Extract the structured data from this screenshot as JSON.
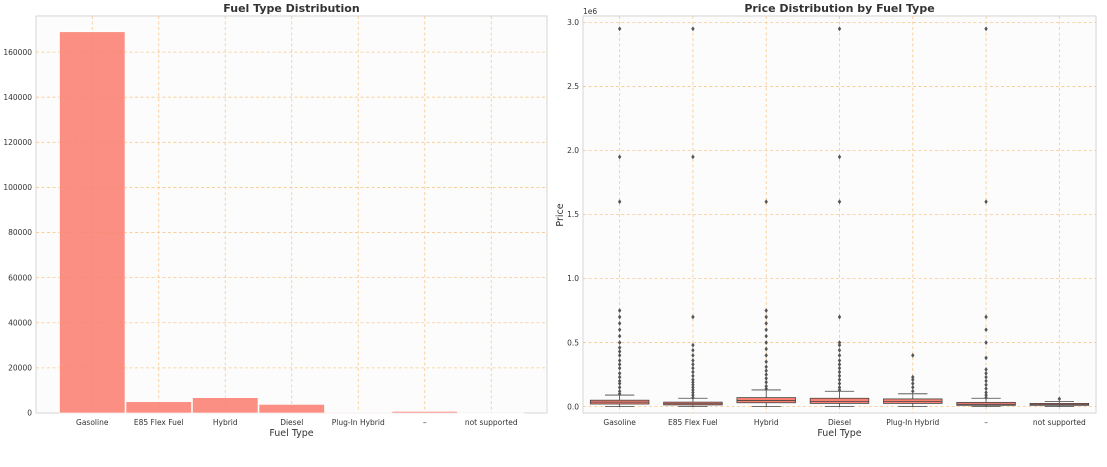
{
  "chart_data": [
    {
      "type": "bar",
      "title": "Fuel Type Distribution",
      "xlabel": "Fuel Type",
      "ylabel": "",
      "categories": [
        "Gasoline",
        "E85 Flex Fuel",
        "Hybrid",
        "Diesel",
        "Plug-In Hybrid",
        "–",
        "not supported"
      ],
      "values": [
        169000,
        5000,
        6800,
        3800,
        300,
        700,
        15
      ],
      "ylim": [
        0,
        176000
      ],
      "yticks": [
        0,
        20000,
        40000,
        60000,
        80000,
        100000,
        120000,
        140000,
        160000
      ],
      "ytick_labels": [
        "0",
        "20000",
        "40000",
        "60000",
        "80000",
        "100000",
        "120000",
        "140000",
        "160000"
      ],
      "grid": true,
      "color": "#fa8072"
    },
    {
      "type": "box",
      "title": "Price Distribution by Fuel Type",
      "xlabel": "Fuel Type",
      "ylabel": "Price",
      "scale_label": "1e6",
      "categories": [
        "Gasoline",
        "E85 Flex Fuel",
        "Hybrid",
        "Diesel",
        "Plug-In Hybrid",
        "–",
        "not supported"
      ],
      "ylim": [
        -0.05,
        3.05
      ],
      "yticks": [
        0.0,
        0.5,
        1.0,
        1.5,
        2.0,
        2.5,
        3.0
      ],
      "ytick_labels": [
        "0.0",
        "0.5",
        "1.0",
        "1.5",
        "2.0",
        "2.5",
        "3.0"
      ],
      "grid": true,
      "color": "#fa8072",
      "boxes": [
        {
          "q1": 0.02,
          "median": 0.035,
          "q3": 0.05,
          "whisker_low": 0.0,
          "whisker_high": 0.09,
          "outliers": [
            0.1,
            0.12,
            0.15,
            0.18,
            0.2,
            0.23,
            0.26,
            0.3,
            0.33,
            0.36,
            0.4,
            0.43,
            0.46,
            0.5,
            0.55,
            0.6,
            0.65,
            0.7,
            0.75,
            1.6,
            1.95,
            2.95
          ]
        },
        {
          "q1": 0.013,
          "median": 0.022,
          "q3": 0.035,
          "whisker_low": 0.0,
          "whisker_high": 0.065,
          "outliers": [
            0.07,
            0.09,
            0.11,
            0.13,
            0.15,
            0.17,
            0.19,
            0.21,
            0.24,
            0.27,
            0.3,
            0.33,
            0.36,
            0.4,
            0.44,
            0.48,
            0.7,
            1.95,
            2.95
          ]
        },
        {
          "q1": 0.03,
          "median": 0.048,
          "q3": 0.07,
          "whisker_low": 0.0,
          "whisker_high": 0.13,
          "outliers": [
            0.14,
            0.16,
            0.19,
            0.22,
            0.25,
            0.28,
            0.31,
            0.35,
            0.4,
            0.45,
            0.5,
            0.55,
            0.6,
            0.65,
            0.7,
            0.75,
            1.6
          ]
        },
        {
          "q1": 0.025,
          "median": 0.04,
          "q3": 0.065,
          "whisker_low": 0.0,
          "whisker_high": 0.12,
          "outliers": [
            0.13,
            0.15,
            0.18,
            0.21,
            0.24,
            0.27,
            0.3,
            0.33,
            0.36,
            0.4,
            0.44,
            0.48,
            0.5,
            0.7,
            1.6,
            1.95,
            2.95
          ]
        },
        {
          "q1": 0.025,
          "median": 0.04,
          "q3": 0.06,
          "whisker_low": 0.0,
          "whisker_high": 0.1,
          "outliers": [
            0.12,
            0.15,
            0.18,
            0.21,
            0.23,
            0.4
          ]
        },
        {
          "q1": 0.01,
          "median": 0.018,
          "q3": 0.033,
          "whisker_low": 0.0,
          "whisker_high": 0.065,
          "outliers": [
            0.07,
            0.09,
            0.11,
            0.14,
            0.17,
            0.2,
            0.23,
            0.26,
            0.29,
            0.38,
            0.5,
            0.6,
            0.7,
            1.6,
            2.95
          ]
        },
        {
          "q1": 0.01,
          "median": 0.015,
          "q3": 0.025,
          "whisker_low": 0.0,
          "whisker_high": 0.04,
          "outliers": [
            0.06
          ]
        }
      ]
    }
  ]
}
